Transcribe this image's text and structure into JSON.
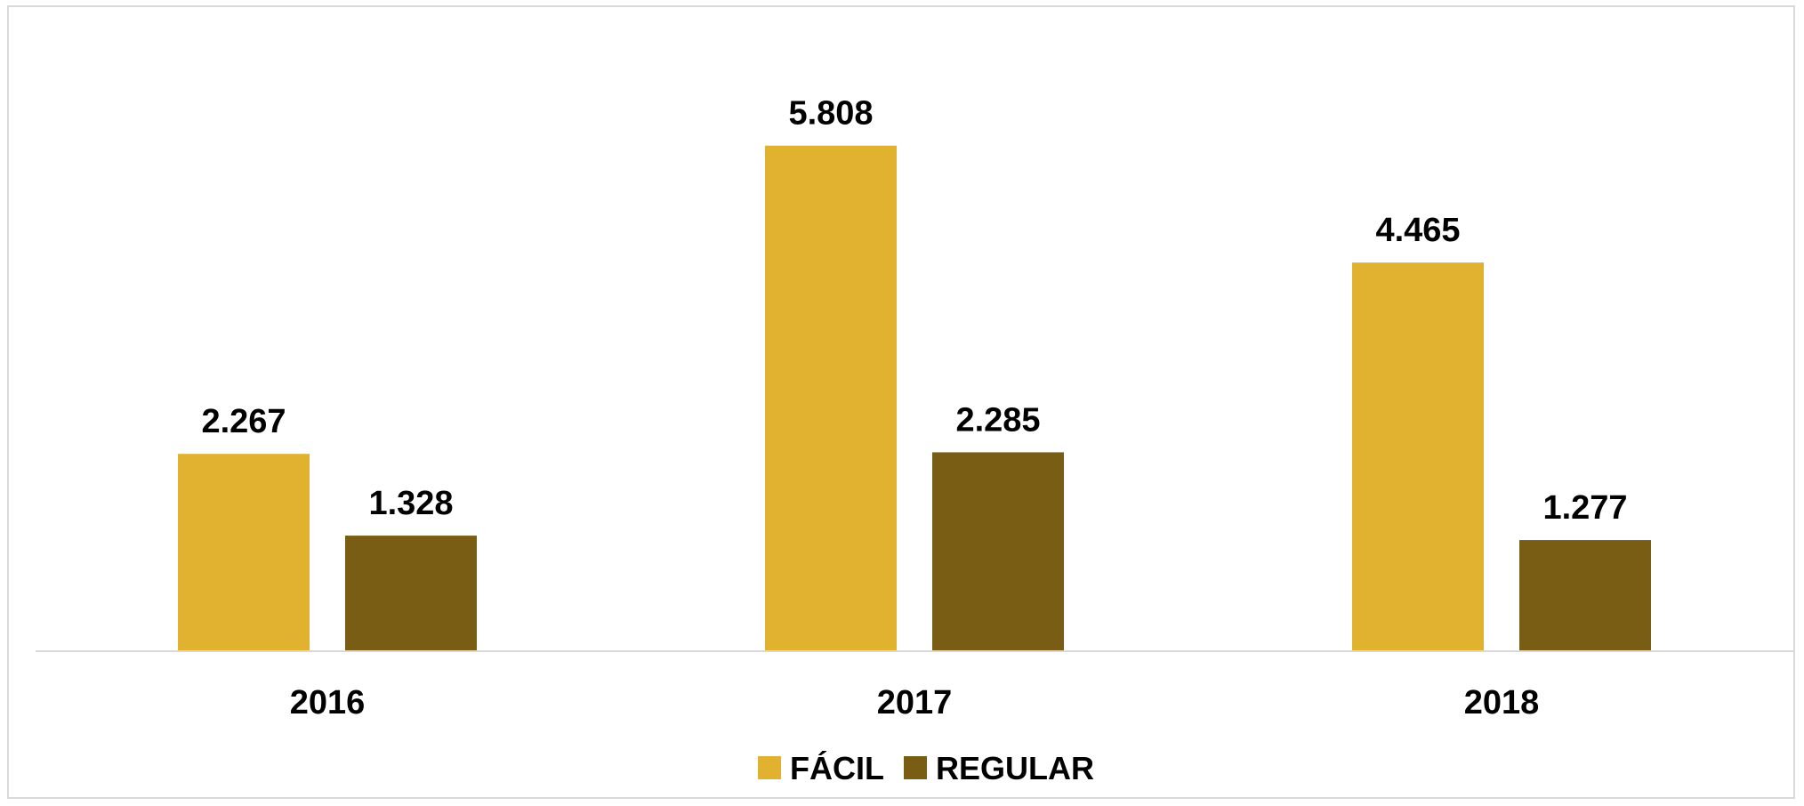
{
  "chart_data": {
    "type": "bar",
    "categories": [
      "2016",
      "2017",
      "2018"
    ],
    "series": [
      {
        "name": "FÁCIL",
        "color": "#E0B22F",
        "values": [
          2267,
          5808,
          4465
        ],
        "value_labels": [
          "2.267",
          "5.808",
          "4.465"
        ]
      },
      {
        "name": "REGULAR",
        "color": "#7A5D15",
        "values": [
          1328,
          2285,
          1277
        ],
        "value_labels": [
          "1.328",
          "2.285",
          "1.277"
        ]
      }
    ],
    "title": "",
    "xlabel": "",
    "ylabel": "",
    "ylim": [
      0,
      6500
    ],
    "grid": false,
    "axis_line_color": "#D9D9D9",
    "legend_position": "bottom-center"
  }
}
